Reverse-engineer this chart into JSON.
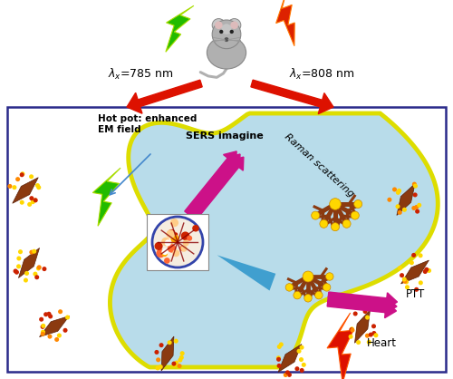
{
  "fig_width": 5.0,
  "fig_height": 4.18,
  "dpi": 100,
  "bg_color": "#ffffff",
  "box_color": "#2a2a8a",
  "cell_color": "#b8dcea",
  "cell_outline_color": "#dddd00",
  "label_785": "$\\lambda_x$=785 nm",
  "label_808": "$\\lambda_x$=808 nm",
  "label_hotpot": "Hot pot: enhanced\nEM field",
  "label_sers": "SERS imagine",
  "label_raman": "Raman scattering",
  "label_ptt": "PTT",
  "label_heart": "Heart",
  "arrow_red": "#dd1100",
  "lightning_green": "#22bb00",
  "lightning_red": "#dd1100",
  "snowflake_brown": "#8B3A10",
  "snowflake_yellow": "#FFD700",
  "dot_red": "#cc2200",
  "nanobipyramid_color": "#8B3A10",
  "triangle_color": "#3399cc",
  "magenta": "#cc1188",
  "blue_arrow": "#4488cc"
}
